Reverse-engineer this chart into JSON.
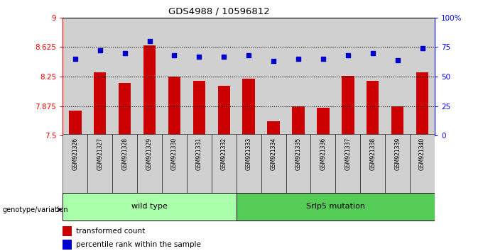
{
  "title": "GDS4988 / 10596812",
  "samples": [
    "GSM921326",
    "GSM921327",
    "GSM921328",
    "GSM921329",
    "GSM921330",
    "GSM921331",
    "GSM921332",
    "GSM921333",
    "GSM921334",
    "GSM921335",
    "GSM921336",
    "GSM921337",
    "GSM921338",
    "GSM921339",
    "GSM921340"
  ],
  "bar_values": [
    7.82,
    8.3,
    8.17,
    8.65,
    8.25,
    8.2,
    8.13,
    8.22,
    7.68,
    7.87,
    7.85,
    8.26,
    8.2,
    7.87,
    8.3
  ],
  "dot_values": [
    65,
    72,
    70,
    80,
    68,
    67,
    67,
    68,
    63,
    65,
    65,
    68,
    70,
    64,
    74
  ],
  "ylim_left": [
    7.5,
    9.0
  ],
  "ylim_right": [
    0,
    100
  ],
  "yticks_left": [
    7.5,
    7.875,
    8.25,
    8.625,
    9.0
  ],
  "ytick_labels_left": [
    "7.5",
    "7.875",
    "8.25",
    "8.625",
    "9"
  ],
  "yticks_right": [
    0,
    25,
    50,
    75,
    100
  ],
  "ytick_labels_right": [
    "0",
    "25",
    "50",
    "75",
    "100%"
  ],
  "hlines": [
    7.875,
    8.25,
    8.625
  ],
  "bar_color": "#cc0000",
  "dot_color": "#0000cc",
  "wild_type_label": "wild type",
  "mutation_label": "Srlp5 mutation",
  "genotype_label": "genotype/variation",
  "wild_type_count": 7,
  "mutation_count": 8,
  "legend_bar_label": "transformed count",
  "legend_dot_label": "percentile rank within the sample",
  "wt_bg": "#aaffaa",
  "mut_bg": "#55cc55",
  "plot_bg": "#ffffff",
  "xtick_bg": "#d0d0d0"
}
